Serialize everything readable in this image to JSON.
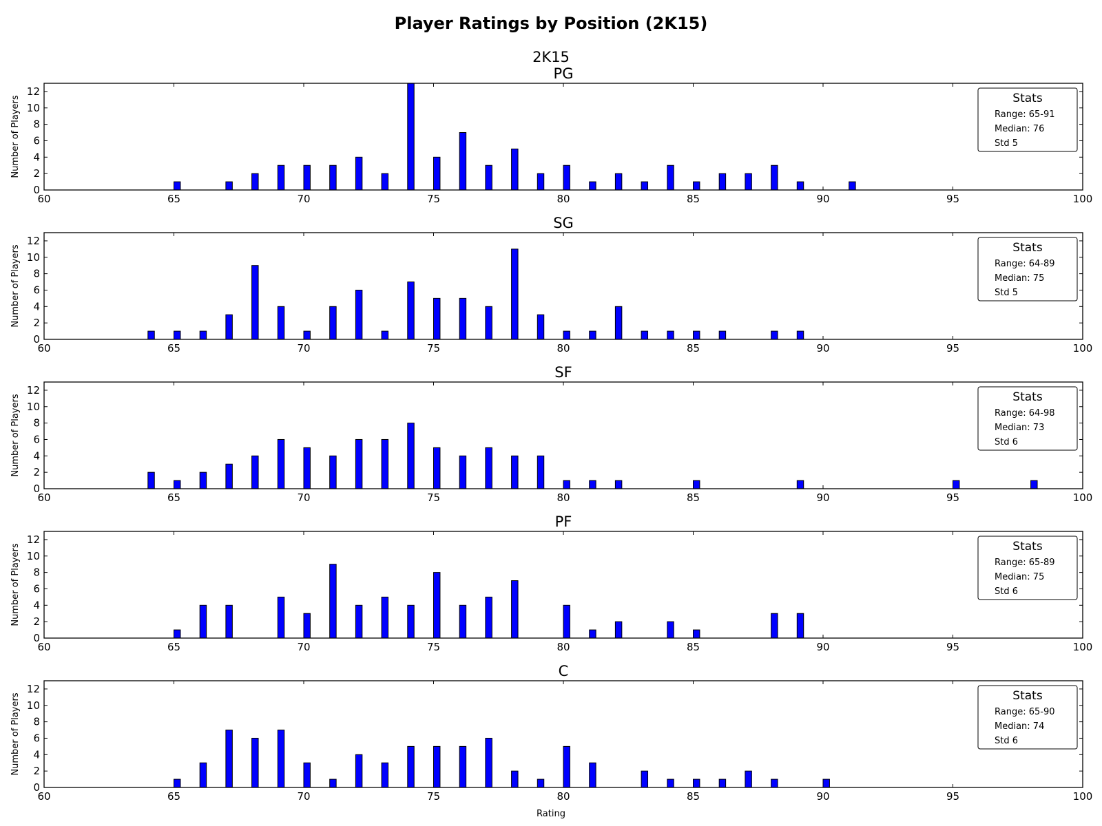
{
  "chart_data": {
    "type": "bar",
    "title": "Player Ratings by Position (2K15)",
    "suptitle": "2K15",
    "xlabel": "Rating",
    "ylabel": "Number of Players",
    "xlim": [
      60,
      100
    ],
    "ylim": [
      0,
      13
    ],
    "xticks": [
      60,
      65,
      70,
      75,
      80,
      85,
      90,
      95,
      100
    ],
    "yticks": [
      0,
      2,
      4,
      6,
      8,
      10,
      12
    ],
    "grid": false,
    "legend_placement": "top-right",
    "bar_color": "#0000ff",
    "panels": [
      {
        "name": "PG",
        "legend": {
          "title": "Stats",
          "lines": [
            "Range: 65-91",
            "Median: 76",
            "Std 5"
          ]
        },
        "x": [
          65,
          67,
          68,
          69,
          70,
          71,
          72,
          73,
          74,
          75,
          76,
          77,
          78,
          79,
          80,
          81,
          82,
          83,
          84,
          85,
          86,
          87,
          88,
          89,
          91
        ],
        "values": [
          1,
          1,
          2,
          3,
          3,
          3,
          4,
          2,
          13,
          4,
          7,
          3,
          5,
          2,
          3,
          1,
          2,
          1,
          3,
          1,
          2,
          2,
          3,
          1,
          1
        ]
      },
      {
        "name": "SG",
        "legend": {
          "title": "Stats",
          "lines": [
            "Range: 64-89",
            "Median: 75",
            "Std 5"
          ]
        },
        "x": [
          64,
          65,
          66,
          67,
          68,
          69,
          70,
          71,
          72,
          73,
          74,
          75,
          76,
          77,
          78,
          79,
          80,
          81,
          82,
          83,
          84,
          85,
          86,
          88,
          89
        ],
        "values": [
          1,
          1,
          1,
          3,
          9,
          4,
          1,
          4,
          6,
          1,
          7,
          5,
          5,
          4,
          11,
          3,
          1,
          1,
          4,
          1,
          1,
          1,
          1,
          1,
          1
        ]
      },
      {
        "name": "SF",
        "legend": {
          "title": "Stats",
          "lines": [
            "Range: 64-98",
            "Median: 73",
            "Std 6"
          ]
        },
        "x": [
          64,
          65,
          66,
          67,
          68,
          69,
          70,
          71,
          72,
          73,
          74,
          75,
          76,
          77,
          78,
          79,
          80,
          81,
          82,
          85,
          89,
          95,
          98
        ],
        "values": [
          2,
          1,
          2,
          3,
          4,
          6,
          5,
          4,
          6,
          6,
          8,
          5,
          4,
          5,
          4,
          4,
          1,
          1,
          1,
          1,
          1,
          1,
          1
        ]
      },
      {
        "name": "PF",
        "legend": {
          "title": "Stats",
          "lines": [
            "Range: 65-89",
            "Median: 75",
            "Std 6"
          ]
        },
        "x": [
          65,
          66,
          67,
          69,
          70,
          71,
          72,
          73,
          74,
          75,
          76,
          77,
          78,
          80,
          81,
          82,
          84,
          85,
          88,
          89
        ],
        "values": [
          1,
          4,
          4,
          5,
          3,
          9,
          4,
          5,
          4,
          8,
          4,
          5,
          7,
          4,
          1,
          2,
          2,
          1,
          3,
          3
        ]
      },
      {
        "name": "C",
        "legend": {
          "title": "Stats",
          "lines": [
            "Range: 65-90",
            "Median: 74",
            "Std 6"
          ]
        },
        "x": [
          65,
          66,
          67,
          68,
          69,
          70,
          71,
          72,
          73,
          74,
          75,
          76,
          77,
          78,
          79,
          80,
          81,
          83,
          84,
          85,
          86,
          87,
          88,
          90
        ],
        "values": [
          1,
          3,
          7,
          6,
          7,
          3,
          1,
          4,
          3,
          5,
          5,
          5,
          6,
          2,
          1,
          5,
          3,
          2,
          1,
          1,
          1,
          2,
          1,
          1
        ]
      }
    ]
  }
}
